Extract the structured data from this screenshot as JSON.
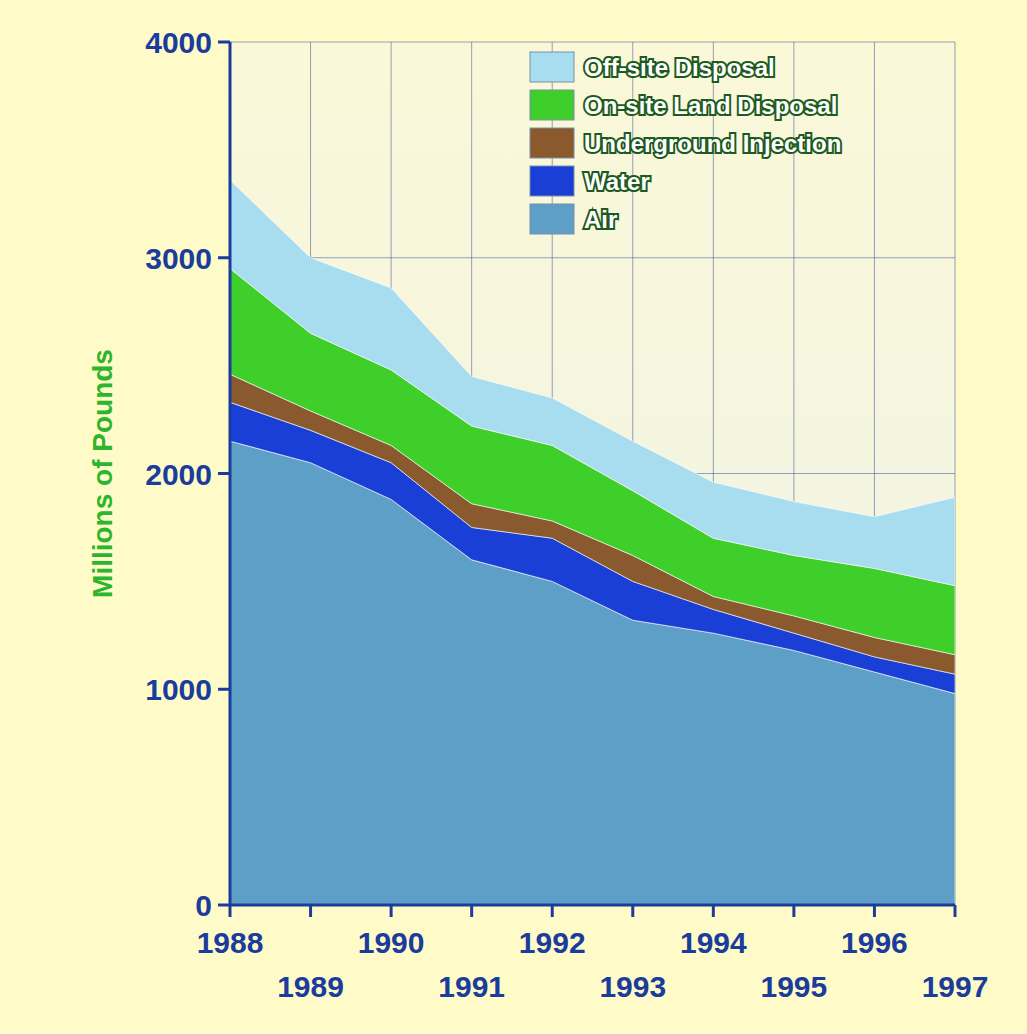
{
  "chart_data": {
    "type": "area",
    "stacked": true,
    "y_label": "Millions of Pounds",
    "x": [
      1988,
      1989,
      1990,
      1991,
      1992,
      1993,
      1994,
      1995,
      1996,
      1997
    ],
    "xlim": [
      1988,
      1997
    ],
    "xticks": [
      1988,
      1989,
      1990,
      1991,
      1992,
      1993,
      1994,
      1995,
      1996,
      1997
    ],
    "ylim": [
      0,
      4000
    ],
    "yticks": [
      0,
      1000,
      2000,
      3000,
      4000
    ],
    "grid": true,
    "legend": "top-right",
    "series": [
      {
        "name": "Air",
        "color": "#5d9fc6",
        "values": [
          2150,
          2050,
          1880,
          1600,
          1500,
          1320,
          1260,
          1180,
          1080,
          980
        ]
      },
      {
        "name": "Water",
        "color": "#1a3fd6",
        "values": [
          180,
          150,
          170,
          150,
          200,
          180,
          110,
          80,
          70,
          90
        ]
      },
      {
        "name": "Underground Injection",
        "color": "#8a5a2e",
        "values": [
          130,
          90,
          80,
          110,
          80,
          120,
          60,
          80,
          90,
          90
        ]
      },
      {
        "name": "On-site Land Disposal",
        "color": "#3ecf2a",
        "values": [
          490,
          360,
          350,
          360,
          350,
          300,
          270,
          280,
          320,
          320
        ]
      },
      {
        "name": "Off-site Disposal",
        "color": "#a8dcef",
        "values": [
          410,
          350,
          380,
          230,
          220,
          230,
          260,
          250,
          240,
          410
        ]
      }
    ]
  }
}
